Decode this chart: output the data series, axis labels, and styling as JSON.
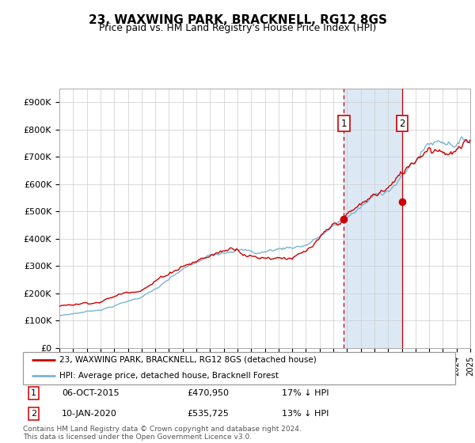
{
  "title": "23, WAXWING PARK, BRACKNELL, RG12 8GS",
  "subtitle": "Price paid vs. HM Land Registry's House Price Index (HPI)",
  "ylim": [
    0,
    950000
  ],
  "yticks": [
    0,
    100000,
    200000,
    300000,
    400000,
    500000,
    600000,
    700000,
    800000,
    900000
  ],
  "ytick_labels": [
    "£0",
    "£100K",
    "£200K",
    "£300K",
    "£400K",
    "£500K",
    "£600K",
    "£700K",
    "£800K",
    "£900K"
  ],
  "hpi_color": "#7ab3d4",
  "price_color": "#cc0000",
  "highlight_bg_color": "#dce9f5",
  "grid_color": "#cccccc",
  "marker1_year": 2015.77,
  "marker2_year": 2020.03,
  "marker1_price": 470950,
  "marker2_price": 535725,
  "marker1_label": "1",
  "marker2_label": "2",
  "marker1_date": "06-OCT-2015",
  "marker1_price_str": "£470,950",
  "marker1_hpi": "17% ↓ HPI",
  "marker2_date": "10-JAN-2020",
  "marker2_price_str": "£535,725",
  "marker2_hpi": "13% ↓ HPI",
  "legend_label1": "23, WAXWING PARK, BRACKNELL, RG12 8GS (detached house)",
  "legend_label2": "HPI: Average price, detached house, Bracknell Forest",
  "footnote": "Contains HM Land Registry data © Crown copyright and database right 2024.\nThis data is licensed under the Open Government Licence v3.0.",
  "xstart_year": 1995,
  "xend_year": 2025
}
